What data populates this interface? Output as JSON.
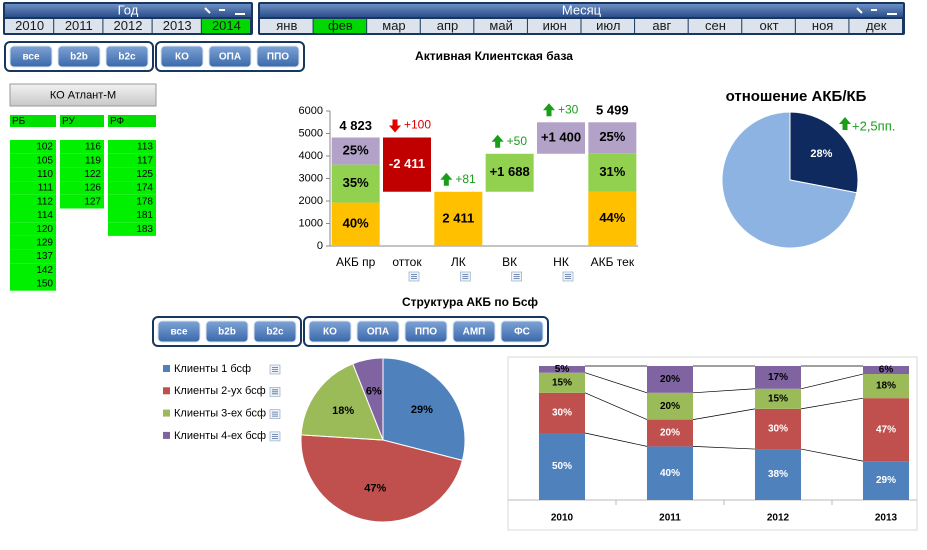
{
  "year_slicer": {
    "title": "Год",
    "items": [
      {
        "label": "2010"
      },
      {
        "label": "2011"
      },
      {
        "label": "2012"
      },
      {
        "label": "2013"
      },
      {
        "label": "2014",
        "selected": true
      }
    ]
  },
  "month_slicer": {
    "title": "Месяц",
    "items": [
      {
        "label": "янв"
      },
      {
        "label": "фев",
        "selected": true
      },
      {
        "label": "мар"
      },
      {
        "label": "апр"
      },
      {
        "label": "май"
      },
      {
        "label": "июн"
      },
      {
        "label": "июл"
      },
      {
        "label": "авг"
      },
      {
        "label": "сен"
      },
      {
        "label": "окт"
      },
      {
        "label": "ноя"
      },
      {
        "label": "дек"
      }
    ]
  },
  "filter_buttons": [
    [
      "все",
      "b2b",
      "b2c"
    ],
    [
      "КО",
      "ОПА",
      "ППО"
    ]
  ],
  "company_button": "КО Атлант-М",
  "region_table": {
    "columns": [
      {
        "header": "РБ",
        "codes": [
          102,
          105,
          110,
          111,
          112,
          114,
          120,
          129,
          137,
          142,
          150
        ]
      },
      {
        "header": "РУ",
        "codes": [
          116,
          119,
          122,
          126,
          127
        ]
      },
      {
        "header": "РФ",
        "codes": [
          113,
          117,
          125,
          174,
          178,
          181,
          183
        ]
      }
    ]
  },
  "structure_title": "Структура АКБ по Бсф",
  "structure_buttons": [
    [
      "все",
      "b2b",
      "b2c"
    ],
    [
      "КО",
      "ОПА",
      "ППО",
      "АМП",
      "ФС"
    ]
  ],
  "chart_data": [
    {
      "type": "waterfall",
      "title": "Активная Клиентская база",
      "categories": [
        "АКБ пр",
        "отток",
        "ЛК",
        "ВК",
        "НК",
        "АКБ тек"
      ],
      "values": [
        4823,
        -2411,
        2411,
        1688,
        1400,
        5499
      ],
      "value_labels": [
        "4 823",
        "-2 411",
        "2 411",
        "+1 688",
        "+1 400",
        "5 499"
      ],
      "measure": [
        "total",
        "relative",
        "total",
        "relative",
        "relative",
        "total"
      ],
      "colors": [
        null,
        "#c00000",
        "#ffc000",
        "#92d050",
        "#b3a2c7",
        null
      ],
      "segments": [
        {
          "values": [
            40,
            35,
            25
          ],
          "value_labels": [
            "40%",
            "35%",
            "25%"
          ]
        },
        null,
        null,
        null,
        null,
        {
          "values": [
            44,
            31,
            25
          ],
          "value_labels": [
            "44%",
            "31%",
            "25%"
          ]
        }
      ],
      "segment_colors": [
        "#ffc000",
        "#92d050",
        "#b3a2c7"
      ],
      "changes": [
        null,
        {
          "value": 100,
          "label": "+100",
          "direction": "down",
          "color": "#e00000"
        },
        {
          "value": 81,
          "label": "+81",
          "direction": "up",
          "color": "#1a9e1a"
        },
        {
          "value": 50,
          "label": "+50",
          "direction": "up",
          "color": "#1a9e1a"
        },
        {
          "value": 30,
          "label": "+30",
          "direction": "up",
          "color": "#1a9e1a"
        },
        null
      ],
      "ylim": [
        0,
        6000
      ],
      "yticks": [
        0,
        1000,
        2000,
        3000,
        4000,
        5000,
        6000
      ]
    },
    {
      "type": "pie",
      "title": "отношение АКБ/КБ",
      "values": [
        28,
        72
      ],
      "value_labels": [
        "28%",
        null
      ],
      "colors": [
        "#0f2a5e",
        "#8db3e2"
      ],
      "annotation": {
        "label": "+2,5пп.",
        "direction": "up",
        "color": "#1a9e1a"
      }
    },
    {
      "type": "pie",
      "labels": [
        "Клиенты 1 бсф",
        "Клиенты 2-ух бсф",
        "Клиенты 3-ех бсф",
        "Клиенты 4-ех бсф"
      ],
      "values": [
        29,
        47,
        18,
        6
      ],
      "value_labels": [
        "29%",
        "47%",
        "18%",
        "6%"
      ],
      "colors": [
        "#4f81bd",
        "#c0504d",
        "#9bbb59",
        "#8064a2"
      ],
      "legend": "left"
    },
    {
      "type": "stacked_bar",
      "categories": [
        "2010",
        "2011",
        "2012",
        "2013"
      ],
      "series": [
        {
          "color": "#4f81bd",
          "values": [
            50,
            40,
            38,
            29
          ],
          "value_labels": [
            "50%",
            "40%",
            "38%",
            "29%"
          ]
        },
        {
          "color": "#c0504d",
          "values": [
            30,
            20,
            30,
            47
          ],
          "value_labels": [
            "30%",
            "20%",
            "30%",
            "47%"
          ]
        },
        {
          "color": "#9bbb59",
          "values": [
            15,
            20,
            15,
            18
          ],
          "value_labels": [
            "15%",
            "20%",
            "15%",
            "18%"
          ]
        },
        {
          "color": "#8064a2",
          "values": [
            5,
            20,
            17,
            6
          ],
          "value_labels": [
            "5%",
            "20%",
            "17%",
            "6%"
          ]
        }
      ]
    }
  ]
}
